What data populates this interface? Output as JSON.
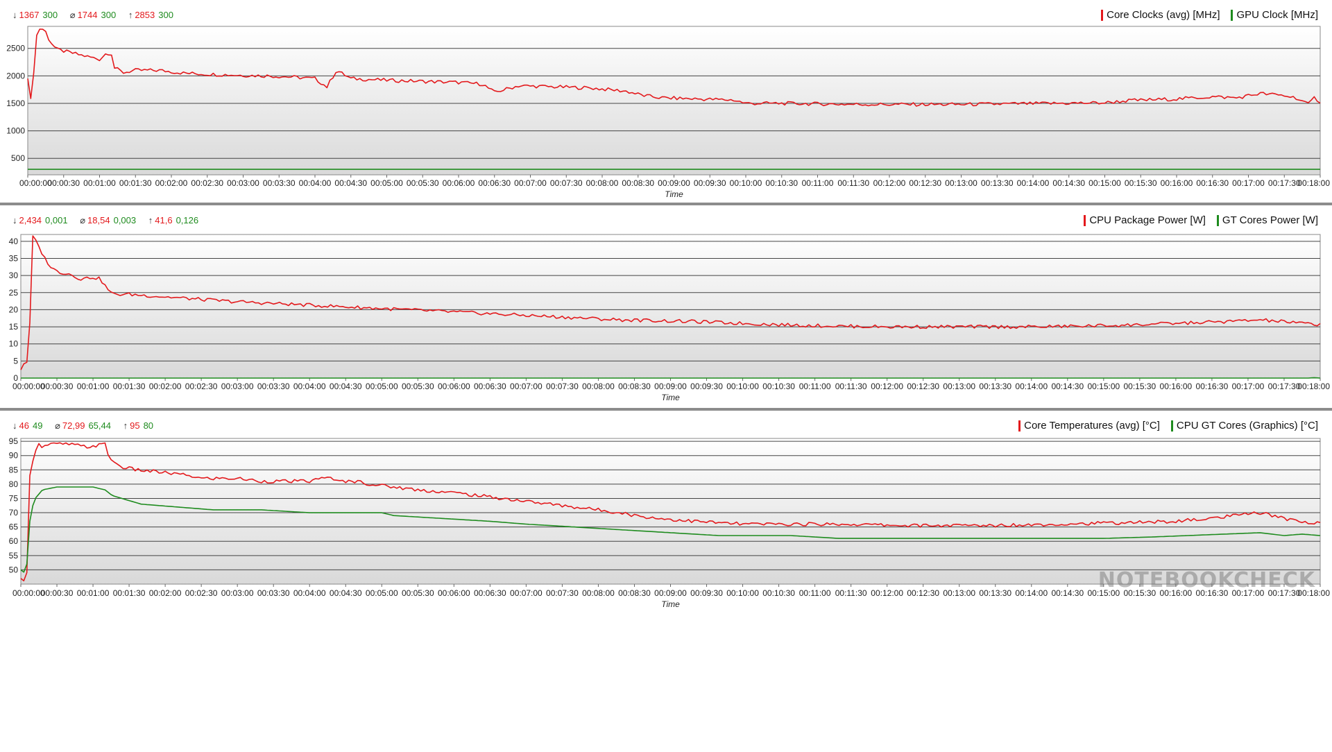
{
  "watermark": "NOTEBOOKCHECK",
  "colors": {
    "red": "#e3191c",
    "green": "#1e8b1e",
    "grid": "#444444"
  },
  "chart_data": [
    {
      "type": "line",
      "xlabel": "Time",
      "ylabel": "",
      "ylim": [
        200,
        2900
      ],
      "yticks": [
        500,
        1000,
        1500,
        2000,
        2500
      ],
      "xlim_seconds": [
        0,
        1080
      ],
      "x_tick_labels": [
        "00:00:00",
        "00:00:30",
        "00:01:00",
        "00:01:30",
        "00:02:00",
        "00:02:30",
        "00:03:00",
        "00:03:30",
        "00:04:00",
        "00:04:30",
        "00:05:00",
        "00:05:30",
        "00:06:00",
        "00:06:30",
        "00:07:00",
        "00:07:30",
        "00:08:00",
        "00:08:30",
        "00:09:00",
        "00:09:30",
        "00:10:00",
        "00:10:30",
        "00:11:00",
        "00:11:30",
        "00:12:00",
        "00:12:30",
        "00:13:00",
        "00:13:30",
        "00:14:00",
        "00:14:30",
        "00:15:00",
        "00:15:30",
        "00:16:00",
        "00:16:30",
        "00:17:00",
        "00:17:30",
        "00:18:00"
      ],
      "stats": {
        "min": {
          "symbol": "↓",
          "red": "1367",
          "green": "300"
        },
        "avg": {
          "symbol": "⌀",
          "red": "1744",
          "green": "300"
        },
        "max": {
          "symbol": "↑",
          "red": "2853",
          "green": "300"
        }
      },
      "series": [
        {
          "name": "Core Clocks (avg) [MHz]",
          "color": "#e3191c",
          "points": [
            [
              0,
              1950
            ],
            [
              2,
              1550
            ],
            [
              4,
              1700
            ],
            [
              6,
              2400
            ],
            [
              8,
              2850
            ],
            [
              14,
              2850
            ],
            [
              18,
              2650
            ],
            [
              24,
              2480
            ],
            [
              30,
              2450
            ],
            [
              40,
              2400
            ],
            [
              50,
              2350
            ],
            [
              60,
              2300
            ],
            [
              66,
              2420
            ],
            [
              70,
              2400
            ],
            [
              72,
              2150
            ],
            [
              80,
              2060
            ],
            [
              90,
              2100
            ],
            [
              110,
              2100
            ],
            [
              130,
              2050
            ],
            [
              150,
              2030
            ],
            [
              180,
              2010
            ],
            [
              200,
              2000
            ],
            [
              220,
              1980
            ],
            [
              240,
              1950
            ],
            [
              250,
              1800
            ],
            [
              258,
              2100
            ],
            [
              270,
              1950
            ],
            [
              300,
              1920
            ],
            [
              330,
              1900
            ],
            [
              360,
              1880
            ],
            [
              380,
              1850
            ],
            [
              390,
              1700
            ],
            [
              410,
              1820
            ],
            [
              440,
              1800
            ],
            [
              470,
              1780
            ],
            [
              500,
              1720
            ],
            [
              515,
              1640
            ],
            [
              530,
              1600
            ],
            [
              560,
              1580
            ],
            [
              590,
              1560
            ],
            [
              600,
              1500
            ],
            [
              630,
              1500
            ],
            [
              660,
              1490
            ],
            [
              700,
              1480
            ],
            [
              740,
              1480
            ],
            [
              780,
              1480
            ],
            [
              820,
              1490
            ],
            [
              860,
              1500
            ],
            [
              900,
              1510
            ],
            [
              920,
              1550
            ],
            [
              960,
              1580
            ],
            [
              990,
              1620
            ],
            [
              1010,
              1600
            ],
            [
              1030,
              1680
            ],
            [
              1050,
              1640
            ],
            [
              1060,
              1600
            ],
            [
              1070,
              1480
            ],
            [
              1075,
              1600
            ],
            [
              1080,
              1530
            ]
          ]
        },
        {
          "name": "GPU Clock [MHz]",
          "color": "#1e8b1e",
          "points": [
            [
              0,
              300
            ],
            [
              1080,
              300
            ]
          ]
        }
      ]
    },
    {
      "type": "line",
      "xlabel": "Time",
      "ylabel": "",
      "ylim": [
        0,
        42
      ],
      "yticks": [
        0,
        5,
        10,
        15,
        20,
        25,
        30,
        35,
        40
      ],
      "xlim_seconds": [
        0,
        1080
      ],
      "x_tick_labels": [
        "00:00:00",
        "00:00:30",
        "00:01:00",
        "00:01:30",
        "00:02:00",
        "00:02:30",
        "00:03:00",
        "00:03:30",
        "00:04:00",
        "00:04:30",
        "00:05:00",
        "00:05:30",
        "00:06:00",
        "00:06:30",
        "00:07:00",
        "00:07:30",
        "00:08:00",
        "00:08:30",
        "00:09:00",
        "00:09:30",
        "00:10:00",
        "00:10:30",
        "00:11:00",
        "00:11:30",
        "00:12:00",
        "00:12:30",
        "00:13:00",
        "00:13:30",
        "00:14:00",
        "00:14:30",
        "00:15:00",
        "00:15:30",
        "00:16:00",
        "00:16:30",
        "00:17:00",
        "00:17:30",
        "00:18:00"
      ],
      "stats": {
        "min": {
          "symbol": "↓",
          "red": "2,434",
          "green": "0,001"
        },
        "avg": {
          "symbol": "⌀",
          "red": "18,54",
          "green": "0,003"
        },
        "max": {
          "symbol": "↑",
          "red": "41,6",
          "green": "0,126"
        }
      },
      "series": [
        {
          "name": "CPU Package Power [W]",
          "color": "#e3191c",
          "points": [
            [
              0,
              2.4
            ],
            [
              3,
              4.5
            ],
            [
              6,
              4.7
            ],
            [
              8,
              20
            ],
            [
              10,
              41.6
            ],
            [
              14,
              39
            ],
            [
              20,
              35
            ],
            [
              26,
              32
            ],
            [
              32,
              31
            ],
            [
              40,
              30.5
            ],
            [
              50,
              29
            ],
            [
              60,
              29.5
            ],
            [
              66,
              29
            ],
            [
              70,
              27
            ],
            [
              76,
              24.5
            ],
            [
              90,
              24.5
            ],
            [
              110,
              24
            ],
            [
              130,
              23.5
            ],
            [
              150,
              23
            ],
            [
              170,
              22.5
            ],
            [
              200,
              22
            ],
            [
              230,
              21.5
            ],
            [
              260,
              21
            ],
            [
              290,
              20.5
            ],
            [
              320,
              20
            ],
            [
              350,
              19.5
            ],
            [
              380,
              19
            ],
            [
              410,
              18.5
            ],
            [
              440,
              18
            ],
            [
              470,
              17.5
            ],
            [
              500,
              17
            ],
            [
              530,
              16.8
            ],
            [
              560,
              16.5
            ],
            [
              600,
              16
            ],
            [
              640,
              15.5
            ],
            [
              680,
              15.2
            ],
            [
              720,
              15
            ],
            [
              760,
              15
            ],
            [
              800,
              15
            ],
            [
              840,
              15
            ],
            [
              880,
              15.2
            ],
            [
              920,
              15.5
            ],
            [
              960,
              16
            ],
            [
              1000,
              16.5
            ],
            [
              1030,
              17
            ],
            [
              1050,
              16.5
            ],
            [
              1065,
              16
            ],
            [
              1080,
              15.7
            ]
          ]
        },
        {
          "name": "GT Cores Power [W]",
          "color": "#1e8b1e",
          "points": [
            [
              0,
              0
            ],
            [
              1070,
              0
            ],
            [
              1075,
              0.12
            ],
            [
              1080,
              0
            ]
          ]
        }
      ]
    },
    {
      "type": "line",
      "xlabel": "Time",
      "ylabel": "",
      "ylim": [
        45,
        96
      ],
      "yticks": [
        50,
        55,
        60,
        65,
        70,
        75,
        80,
        85,
        90,
        95
      ],
      "xlim_seconds": [
        0,
        1080
      ],
      "x_tick_labels": [
        "00:00:00",
        "00:00:30",
        "00:01:00",
        "00:01:30",
        "00:02:00",
        "00:02:30",
        "00:03:00",
        "00:03:30",
        "00:04:00",
        "00:04:30",
        "00:05:00",
        "00:05:30",
        "00:06:00",
        "00:06:30",
        "00:07:00",
        "00:07:30",
        "00:08:00",
        "00:08:30",
        "00:09:00",
        "00:09:30",
        "00:10:00",
        "00:10:30",
        "00:11:00",
        "00:11:30",
        "00:12:00",
        "00:12:30",
        "00:13:00",
        "00:13:30",
        "00:14:00",
        "00:14:30",
        "00:15:00",
        "00:15:30",
        "00:16:00",
        "00:16:30",
        "00:17:00",
        "00:17:30",
        "00:18:00"
      ],
      "stats": {
        "min": {
          "symbol": "↓",
          "red": "46",
          "green": "49"
        },
        "avg": {
          "symbol": "⌀",
          "red": "72,99",
          "green": "65,44"
        },
        "max": {
          "symbol": "↑",
          "red": "95",
          "green": "80"
        }
      },
      "series": [
        {
          "name": "Core Temperatures (avg) [°C]",
          "color": "#e3191c",
          "points": [
            [
              0,
              47
            ],
            [
              3,
              46
            ],
            [
              5,
              49
            ],
            [
              7,
              82
            ],
            [
              10,
              88
            ],
            [
              14,
              95
            ],
            [
              18,
              93
            ],
            [
              24,
              94
            ],
            [
              40,
              94
            ],
            [
              55,
              93
            ],
            [
              70,
              94
            ],
            [
              72,
              91
            ],
            [
              76,
              88
            ],
            [
              84,
              86
            ],
            [
              96,
              85
            ],
            [
              120,
              84
            ],
            [
              140,
              83
            ],
            [
              150,
              82
            ],
            [
              180,
              82
            ],
            [
              200,
              81
            ],
            [
              240,
              81
            ],
            [
              250,
              82
            ],
            [
              255,
              83
            ],
            [
              260,
              81
            ],
            [
              280,
              81
            ],
            [
              290,
              80
            ],
            [
              310,
              79
            ],
            [
              330,
              78
            ],
            [
              360,
              77
            ],
            [
              380,
              76
            ],
            [
              400,
              75
            ],
            [
              420,
              74
            ],
            [
              440,
              73
            ],
            [
              460,
              72
            ],
            [
              480,
              71
            ],
            [
              500,
              70
            ],
            [
              510,
              69
            ],
            [
              530,
              68
            ],
            [
              560,
              67
            ],
            [
              600,
              66
            ],
            [
              680,
              66
            ],
            [
              740,
              65.5
            ],
            [
              800,
              65.5
            ],
            [
              860,
              66
            ],
            [
              920,
              66.5
            ],
            [
              960,
              67
            ],
            [
              990,
              68
            ],
            [
              1010,
              69
            ],
            [
              1030,
              70
            ],
            [
              1050,
              68
            ],
            [
              1065,
              67
            ],
            [
              1075,
              66
            ],
            [
              1080,
              67
            ]
          ]
        },
        {
          "name": "CPU GT Cores (Graphics) [°C]",
          "color": "#1e8b1e",
          "points": [
            [
              0,
              50
            ],
            [
              3,
              49
            ],
            [
              5,
              52
            ],
            [
              8,
              70
            ],
            [
              12,
              75
            ],
            [
              18,
              78
            ],
            [
              30,
              79
            ],
            [
              60,
              79
            ],
            [
              70,
              78
            ],
            [
              76,
              76
            ],
            [
              84,
              75
            ],
            [
              100,
              73
            ],
            [
              130,
              72
            ],
            [
              160,
              71
            ],
            [
              200,
              71
            ],
            [
              240,
              70
            ],
            [
              280,
              70
            ],
            [
              300,
              70
            ],
            [
              310,
              69
            ],
            [
              350,
              68
            ],
            [
              390,
              67
            ],
            [
              420,
              66
            ],
            [
              460,
              65
            ],
            [
              500,
              64
            ],
            [
              540,
              63
            ],
            [
              580,
              62
            ],
            [
              640,
              62
            ],
            [
              680,
              61
            ],
            [
              720,
              61
            ],
            [
              780,
              61
            ],
            [
              840,
              61
            ],
            [
              900,
              61
            ],
            [
              940,
              61.5
            ],
            [
              970,
              62
            ],
            [
              1000,
              62.5
            ],
            [
              1030,
              63
            ],
            [
              1050,
              62
            ],
            [
              1065,
              62.5
            ],
            [
              1080,
              62
            ]
          ]
        }
      ]
    }
  ]
}
